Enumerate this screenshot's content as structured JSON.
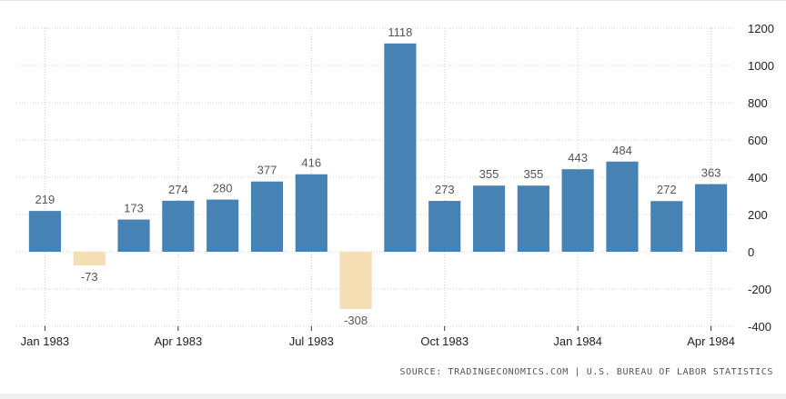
{
  "chart_data": {
    "type": "bar",
    "categories": [
      "Jan 1983",
      "Feb 1983",
      "Mar 1983",
      "Apr 1983",
      "May 1983",
      "Jun 1983",
      "Jul 1983",
      "Aug 1983",
      "Sep 1983",
      "Oct 1983",
      "Nov 1983",
      "Dec 1983",
      "Jan 1984",
      "Feb 1984",
      "Mar 1984",
      "Apr 1984"
    ],
    "values": [
      219,
      -73,
      173,
      274,
      280,
      377,
      416,
      -308,
      1118,
      273,
      355,
      355,
      443,
      484,
      272,
      363
    ],
    "x_tick_labels": [
      {
        "index": 0,
        "label": "Jan 1983"
      },
      {
        "index": 3,
        "label": "Apr 1983"
      },
      {
        "index": 6,
        "label": "Jul 1983"
      },
      {
        "index": 9,
        "label": "Oct 1983"
      },
      {
        "index": 12,
        "label": "Jan 1984"
      },
      {
        "index": 15,
        "label": "Apr 1984"
      }
    ],
    "y_ticks": [
      1200,
      1000,
      800,
      600,
      400,
      200,
      0,
      -200,
      -400
    ],
    "ylim": [
      -400,
      1200
    ],
    "y_axis_side": "right",
    "grid": true,
    "colors": {
      "positive": "#4682b4",
      "negative": "#f5deb3"
    },
    "title": "",
    "xlabel": "",
    "ylabel": ""
  },
  "source_text": "SOURCE: TRADINGECONOMICS.COM | U.S. BUREAU OF LABOR STATISTICS"
}
